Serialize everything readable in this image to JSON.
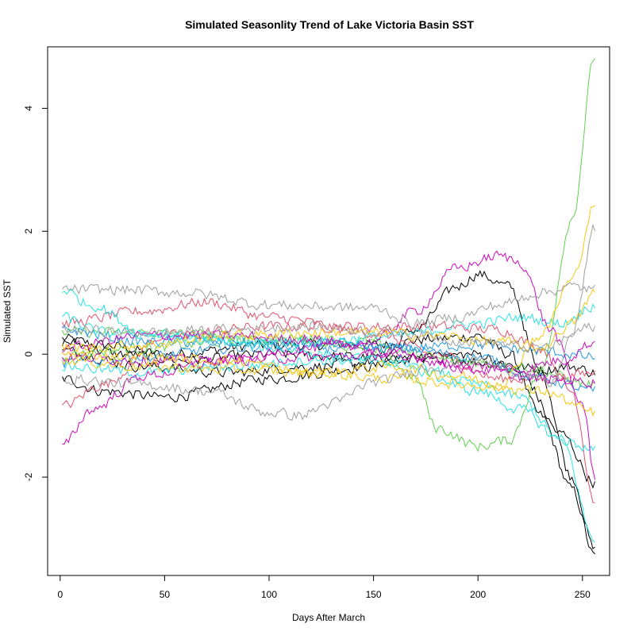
{
  "chart_data": {
    "type": "line",
    "title": "Simulated Seasonlity Trend of Lake Victoria Basin SST",
    "xlabel": "Days After March",
    "ylabel": "Simulated SST",
    "xlim": [
      -6,
      263
    ],
    "ylim": [
      -3.6,
      5.0
    ],
    "x_ticks": [
      0,
      50,
      100,
      150,
      200,
      250
    ],
    "y_ticks": [
      -2,
      0,
      2,
      4
    ],
    "x_range": [
      1,
      256
    ],
    "grid": false,
    "legend": "none",
    "series": [
      {
        "color": "#000000",
        "values": [
          [
            1,
            0.25
          ],
          [
            20,
            0.15
          ],
          [
            50,
            0.0
          ],
          [
            100,
            0.15
          ],
          [
            150,
            0.15
          ],
          [
            180,
            0.25
          ],
          [
            200,
            0.3
          ],
          [
            215,
            0.0
          ],
          [
            230,
            -1.0
          ],
          [
            245,
            -2.2
          ],
          [
            256,
            -3.3
          ]
        ]
      },
      {
        "color": "#000000",
        "values": [
          [
            1,
            -0.4
          ],
          [
            20,
            -0.6
          ],
          [
            50,
            -0.7
          ],
          [
            100,
            -0.4
          ],
          [
            150,
            -0.2
          ],
          [
            170,
            0.4
          ],
          [
            190,
            1.1
          ],
          [
            200,
            1.3
          ],
          [
            215,
            1.1
          ],
          [
            230,
            -0.3
          ],
          [
            245,
            -2.0
          ],
          [
            256,
            -3.2
          ]
        ]
      },
      {
        "color": "#000000",
        "values": [
          [
            1,
            0.2
          ],
          [
            30,
            0.0
          ],
          [
            60,
            -0.1
          ],
          [
            100,
            0.0
          ],
          [
            150,
            -0.05
          ],
          [
            180,
            -0.05
          ],
          [
            210,
            -0.15
          ],
          [
            230,
            -0.25
          ],
          [
            245,
            -0.2
          ],
          [
            256,
            -0.3
          ]
        ]
      },
      {
        "color": "#000000",
        "values": [
          [
            1,
            0.05
          ],
          [
            40,
            -0.2
          ],
          [
            80,
            -0.3
          ],
          [
            120,
            -0.2
          ],
          [
            160,
            -0.1
          ],
          [
            200,
            0.0
          ],
          [
            220,
            -0.3
          ],
          [
            240,
            -1.3
          ],
          [
            256,
            -2.1
          ]
        ]
      },
      {
        "color": "#DF536B",
        "values": [
          [
            1,
            -0.85
          ],
          [
            20,
            -0.5
          ],
          [
            50,
            0.3
          ],
          [
            100,
            0.45
          ],
          [
            150,
            0.45
          ],
          [
            180,
            0.45
          ],
          [
            210,
            0.4
          ],
          [
            230,
            0.1
          ],
          [
            245,
            -0.6
          ],
          [
            256,
            -2.4
          ]
        ]
      },
      {
        "color": "#DF536B",
        "values": [
          [
            1,
            0.5
          ],
          [
            40,
            0.7
          ],
          [
            70,
            0.85
          ],
          [
            100,
            0.6
          ],
          [
            150,
            0.35
          ],
          [
            180,
            0.0
          ],
          [
            210,
            -0.4
          ],
          [
            235,
            -0.4
          ],
          [
            256,
            -0.3
          ]
        ]
      },
      {
        "color": "#61D04F",
        "values": [
          [
            1,
            0.0
          ],
          [
            40,
            0.1
          ],
          [
            80,
            0.2
          ],
          [
            120,
            0.25
          ],
          [
            150,
            0.2
          ],
          [
            170,
            -0.4
          ],
          [
            180,
            -1.2
          ],
          [
            200,
            -1.5
          ],
          [
            215,
            -1.4
          ],
          [
            230,
            -0.3
          ],
          [
            245,
            2.2
          ],
          [
            256,
            4.85
          ]
        ]
      },
      {
        "color": "#61D04F",
        "values": [
          [
            1,
            0.35
          ],
          [
            40,
            0.35
          ],
          [
            80,
            0.3
          ],
          [
            120,
            0.2
          ],
          [
            150,
            0.1
          ],
          [
            190,
            -0.1
          ],
          [
            220,
            -0.2
          ],
          [
            256,
            -0.5
          ]
        ]
      },
      {
        "color": "#2297E6",
        "values": [
          [
            1,
            -0.15
          ],
          [
            40,
            -0.05
          ],
          [
            80,
            0.1
          ],
          [
            120,
            0.2
          ],
          [
            160,
            0.1
          ],
          [
            200,
            -0.05
          ],
          [
            230,
            -0.4
          ],
          [
            256,
            -0.6
          ]
        ]
      },
      {
        "color": "#2297E6",
        "values": [
          [
            1,
            0.4
          ],
          [
            40,
            0.2
          ],
          [
            80,
            0.2
          ],
          [
            120,
            0.1
          ],
          [
            160,
            0.1
          ],
          [
            200,
            0.15
          ],
          [
            230,
            0.05
          ],
          [
            256,
            -0.05
          ]
        ]
      },
      {
        "color": "#28E2E5",
        "values": [
          [
            1,
            0.6
          ],
          [
            20,
            0.35
          ],
          [
            60,
            0.3
          ],
          [
            100,
            0.1
          ],
          [
            150,
            -0.1
          ],
          [
            180,
            -0.3
          ],
          [
            200,
            -0.5
          ],
          [
            220,
            -0.7
          ],
          [
            240,
            -1.4
          ],
          [
            256,
            -3.05
          ]
        ]
      },
      {
        "color": "#28E2E5",
        "values": [
          [
            1,
            1.05
          ],
          [
            15,
            0.8
          ],
          [
            40,
            0.35
          ],
          [
            80,
            0.2
          ],
          [
            120,
            0.2
          ],
          [
            160,
            0.3
          ],
          [
            200,
            0.5
          ],
          [
            220,
            0.6
          ],
          [
            240,
            0.5
          ],
          [
            256,
            0.8
          ]
        ]
      },
      {
        "color": "#28E2E5",
        "values": [
          [
            1,
            -0.2
          ],
          [
            40,
            -0.3
          ],
          [
            80,
            -0.2
          ],
          [
            120,
            -0.1
          ],
          [
            160,
            -0.1
          ],
          [
            200,
            -0.6
          ],
          [
            220,
            -0.9
          ],
          [
            240,
            -1.4
          ],
          [
            256,
            -1.55
          ]
        ]
      },
      {
        "color": "#CD0BBC",
        "values": [
          [
            1,
            -1.5
          ],
          [
            15,
            -0.9
          ],
          [
            40,
            -0.35
          ],
          [
            80,
            -0.1
          ],
          [
            120,
            0.1
          ],
          [
            150,
            0.2
          ],
          [
            170,
            0.7
          ],
          [
            190,
            1.4
          ],
          [
            210,
            1.6
          ],
          [
            220,
            1.5
          ],
          [
            235,
            0.4
          ],
          [
            250,
            -0.8
          ],
          [
            256,
            -2.0
          ]
        ]
      },
      {
        "color": "#CD0BBC",
        "values": [
          [
            1,
            0.1
          ],
          [
            40,
            0.3
          ],
          [
            80,
            0.3
          ],
          [
            120,
            0.25
          ],
          [
            160,
            0.0
          ],
          [
            200,
            -0.2
          ],
          [
            220,
            -0.25
          ],
          [
            240,
            -0.1
          ],
          [
            256,
            0.2
          ]
        ]
      },
      {
        "color": "#CD0BBC",
        "values": [
          [
            1,
            -0.05
          ],
          [
            40,
            -0.1
          ],
          [
            80,
            -0.1
          ],
          [
            120,
            -0.05
          ],
          [
            160,
            0.0
          ],
          [
            200,
            -0.25
          ],
          [
            230,
            -0.4
          ],
          [
            256,
            -0.45
          ]
        ]
      },
      {
        "color": "#F5C710",
        "values": [
          [
            1,
            -0.1
          ],
          [
            40,
            -0.2
          ],
          [
            80,
            -0.25
          ],
          [
            120,
            -0.3
          ],
          [
            160,
            -0.2
          ],
          [
            190,
            -0.35
          ],
          [
            210,
            -0.5
          ],
          [
            230,
            0.3
          ],
          [
            245,
            1.2
          ],
          [
            256,
            2.45
          ]
        ]
      },
      {
        "color": "#F5C710",
        "values": [
          [
            1,
            0.1
          ],
          [
            40,
            0.15
          ],
          [
            80,
            0.3
          ],
          [
            120,
            0.35
          ],
          [
            150,
            0.35
          ],
          [
            180,
            0.3
          ],
          [
            210,
            0.2
          ],
          [
            230,
            0.1
          ],
          [
            245,
            0.5
          ],
          [
            256,
            1.0
          ]
        ]
      },
      {
        "color": "#F5C710",
        "values": [
          [
            1,
            0.0
          ],
          [
            40,
            -0.05
          ],
          [
            80,
            -0.1
          ],
          [
            120,
            -0.3
          ],
          [
            160,
            -0.4
          ],
          [
            200,
            -0.5
          ],
          [
            230,
            -0.6
          ],
          [
            256,
            -0.95
          ]
        ]
      },
      {
        "color": "#9E9E9E",
        "values": [
          [
            1,
            1.05
          ],
          [
            30,
            1.05
          ],
          [
            60,
            1.0
          ],
          [
            100,
            0.8
          ],
          [
            150,
            0.75
          ],
          [
            170,
            0.5
          ],
          [
            190,
            0.6
          ],
          [
            210,
            0.8
          ],
          [
            230,
            1.0
          ],
          [
            245,
            1.1
          ],
          [
            256,
            1.05
          ]
        ]
      },
      {
        "color": "#9E9E9E",
        "values": [
          [
            1,
            -0.4
          ],
          [
            40,
            -0.5
          ],
          [
            70,
            -0.6
          ],
          [
            100,
            -0.95
          ],
          [
            115,
            -1.0
          ],
          [
            130,
            -0.8
          ],
          [
            150,
            -0.45
          ],
          [
            180,
            -0.2
          ],
          [
            200,
            -0.1
          ],
          [
            220,
            -0.3
          ],
          [
            235,
            -0.5
          ],
          [
            245,
            0.3
          ],
          [
            256,
            2.05
          ]
        ]
      },
      {
        "color": "#9E9E9E",
        "values": [
          [
            1,
            0.4
          ],
          [
            40,
            0.35
          ],
          [
            80,
            0.4
          ],
          [
            120,
            0.45
          ],
          [
            160,
            0.35
          ],
          [
            200,
            0.2
          ],
          [
            230,
            0.1
          ],
          [
            256,
            0.45
          ]
        ]
      }
    ]
  }
}
